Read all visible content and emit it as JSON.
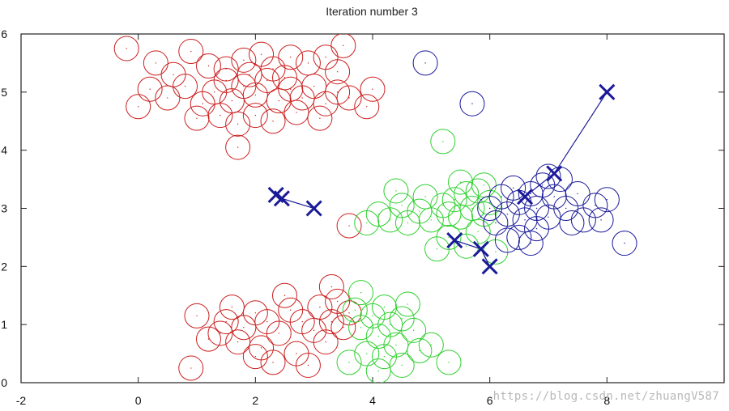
{
  "chart_data": {
    "type": "scatter",
    "title": "Iteration number 3",
    "xlabel": "",
    "ylabel": "",
    "xlim": [
      -2,
      10
    ],
    "ylim": [
      0,
      6
    ],
    "xticks": [
      "-2",
      "0",
      "2",
      "4",
      "6",
      "8"
    ],
    "yticks": [
      "0",
      "1",
      "2",
      "3",
      "4",
      "5",
      "6"
    ],
    "grid": false,
    "series": [
      {
        "color": "#cc1f1f",
        "marker": "circle",
        "points": [
          [
            -0.2,
            5.75
          ],
          [
            0.3,
            5.5
          ],
          [
            0.6,
            5.3
          ],
          [
            0.9,
            5.7
          ],
          [
            1.2,
            5.45
          ],
          [
            1.5,
            5.2
          ],
          [
            1.8,
            5.55
          ],
          [
            2.1,
            5.65
          ],
          [
            2.3,
            5.4
          ],
          [
            2.6,
            5.6
          ],
          [
            2.9,
            5.5
          ],
          [
            3.2,
            5.6
          ],
          [
            3.5,
            5.8
          ],
          [
            3.4,
            5.35
          ],
          [
            0.0,
            4.75
          ],
          [
            0.2,
            5.05
          ],
          [
            0.5,
            4.9
          ],
          [
            0.8,
            5.1
          ],
          [
            1.1,
            4.8
          ],
          [
            1.3,
            5.0
          ],
          [
            1.6,
            4.85
          ],
          [
            1.8,
            5.1
          ],
          [
            2.0,
            4.95
          ],
          [
            2.2,
            5.2
          ],
          [
            2.4,
            4.85
          ],
          [
            2.6,
            5.05
          ],
          [
            2.8,
            4.9
          ],
          [
            3.0,
            5.1
          ],
          [
            3.2,
            4.8
          ],
          [
            3.4,
            5.0
          ],
          [
            3.6,
            4.9
          ],
          [
            3.9,
            4.75
          ],
          [
            4.0,
            5.05
          ],
          [
            1.0,
            4.55
          ],
          [
            1.4,
            4.6
          ],
          [
            1.7,
            4.45
          ],
          [
            2.0,
            4.6
          ],
          [
            2.3,
            4.5
          ],
          [
            2.7,
            4.65
          ],
          [
            3.1,
            4.55
          ],
          [
            1.7,
            4.05
          ],
          [
            1.9,
            5.3
          ],
          [
            2.5,
            5.25
          ],
          [
            1.5,
            5.4
          ],
          [
            3.6,
            2.7
          ],
          [
            1.0,
            1.15
          ],
          [
            0.9,
            0.25
          ],
          [
            1.2,
            0.75
          ],
          [
            1.5,
            1.05
          ],
          [
            1.6,
            1.3
          ],
          [
            1.8,
            0.95
          ],
          [
            2.0,
            1.2
          ],
          [
            2.1,
            0.6
          ],
          [
            2.2,
            1.05
          ],
          [
            2.4,
            0.85
          ],
          [
            2.6,
            1.25
          ],
          [
            2.7,
            0.5
          ],
          [
            2.8,
            1.05
          ],
          [
            3.0,
            0.9
          ],
          [
            3.1,
            1.3
          ],
          [
            3.2,
            0.7
          ],
          [
            3.3,
            1.05
          ],
          [
            3.4,
            1.4
          ],
          [
            3.5,
            0.95
          ],
          [
            3.6,
            1.2
          ],
          [
            1.7,
            0.7
          ],
          [
            2.3,
            0.35
          ],
          [
            2.9,
            0.3
          ],
          [
            1.4,
            0.85
          ],
          [
            2.5,
            1.5
          ],
          [
            3.3,
            1.65
          ],
          [
            2.0,
            0.45
          ]
        ]
      },
      {
        "color": "#2fd02f",
        "marker": "circle",
        "points": [
          [
            5.2,
            4.15
          ],
          [
            3.9,
            2.75
          ],
          [
            4.1,
            2.9
          ],
          [
            4.3,
            2.8
          ],
          [
            4.5,
            3.05
          ],
          [
            4.6,
            2.75
          ],
          [
            4.8,
            2.95
          ],
          [
            5.0,
            2.8
          ],
          [
            5.2,
            3.05
          ],
          [
            5.3,
            2.9
          ],
          [
            5.4,
            3.15
          ],
          [
            5.5,
            2.85
          ],
          [
            5.6,
            3.25
          ],
          [
            5.7,
            3.0
          ],
          [
            5.8,
            3.3
          ],
          [
            5.9,
            2.9
          ],
          [
            6.0,
            3.1
          ],
          [
            5.1,
            2.3
          ],
          [
            5.3,
            2.5
          ],
          [
            5.6,
            2.35
          ],
          [
            5.8,
            2.6
          ],
          [
            6.1,
            2.25
          ],
          [
            4.4,
            3.3
          ],
          [
            4.9,
            3.2
          ],
          [
            5.5,
            3.45
          ],
          [
            5.9,
            3.4
          ],
          [
            3.7,
            1.25
          ],
          [
            3.8,
            0.95
          ],
          [
            4.0,
            1.15
          ],
          [
            4.1,
            0.8
          ],
          [
            4.2,
            1.3
          ],
          [
            4.3,
            1.0
          ],
          [
            4.4,
            0.65
          ],
          [
            4.5,
            1.1
          ],
          [
            4.6,
            1.35
          ],
          [
            4.7,
            0.9
          ],
          [
            4.8,
            0.55
          ],
          [
            4.2,
            0.45
          ],
          [
            4.1,
            0.2
          ],
          [
            3.9,
            0.5
          ],
          [
            3.6,
            0.35
          ],
          [
            5.0,
            0.65
          ],
          [
            5.3,
            0.35
          ],
          [
            4.5,
            0.3
          ],
          [
            3.8,
            1.55
          ]
        ]
      },
      {
        "color": "#1a1a99",
        "marker": "circle",
        "points": [
          [
            4.9,
            5.5
          ],
          [
            5.7,
            4.8
          ],
          [
            6.0,
            3.0
          ],
          [
            6.1,
            2.75
          ],
          [
            6.2,
            3.2
          ],
          [
            6.3,
            2.9
          ],
          [
            6.4,
            3.35
          ],
          [
            6.5,
            3.1
          ],
          [
            6.6,
            2.8
          ],
          [
            6.7,
            3.25
          ],
          [
            6.8,
            3.0
          ],
          [
            6.9,
            3.4
          ],
          [
            7.0,
            2.85
          ],
          [
            7.1,
            3.2
          ],
          [
            7.2,
            3.5
          ],
          [
            7.3,
            3.0
          ],
          [
            7.5,
            3.25
          ],
          [
            7.6,
            2.8
          ],
          [
            7.8,
            3.05
          ],
          [
            8.0,
            3.15
          ],
          [
            7.9,
            2.8
          ],
          [
            6.5,
            2.5
          ],
          [
            6.8,
            2.65
          ],
          [
            6.3,
            2.45
          ],
          [
            7.4,
            2.75
          ],
          [
            8.3,
            2.4
          ],
          [
            6.7,
            2.4
          ],
          [
            7.0,
            3.55
          ]
        ]
      }
    ],
    "centroid_paths": [
      {
        "color": "#1a1a99",
        "points": [
          [
            3.0,
            3.0
          ],
          [
            2.45,
            3.17
          ],
          [
            2.35,
            3.23
          ]
        ]
      },
      {
        "color": "#1a1a99",
        "points": [
          [
            6.0,
            2.0
          ],
          [
            5.85,
            2.3
          ],
          [
            5.4,
            2.45
          ]
        ]
      },
      {
        "color": "#1a1a99",
        "points": [
          [
            8.0,
            5.0
          ],
          [
            7.1,
            3.6
          ],
          [
            6.6,
            3.2
          ]
        ]
      }
    ]
  },
  "watermark": "https://blog.csdn.net/zhuangV587"
}
